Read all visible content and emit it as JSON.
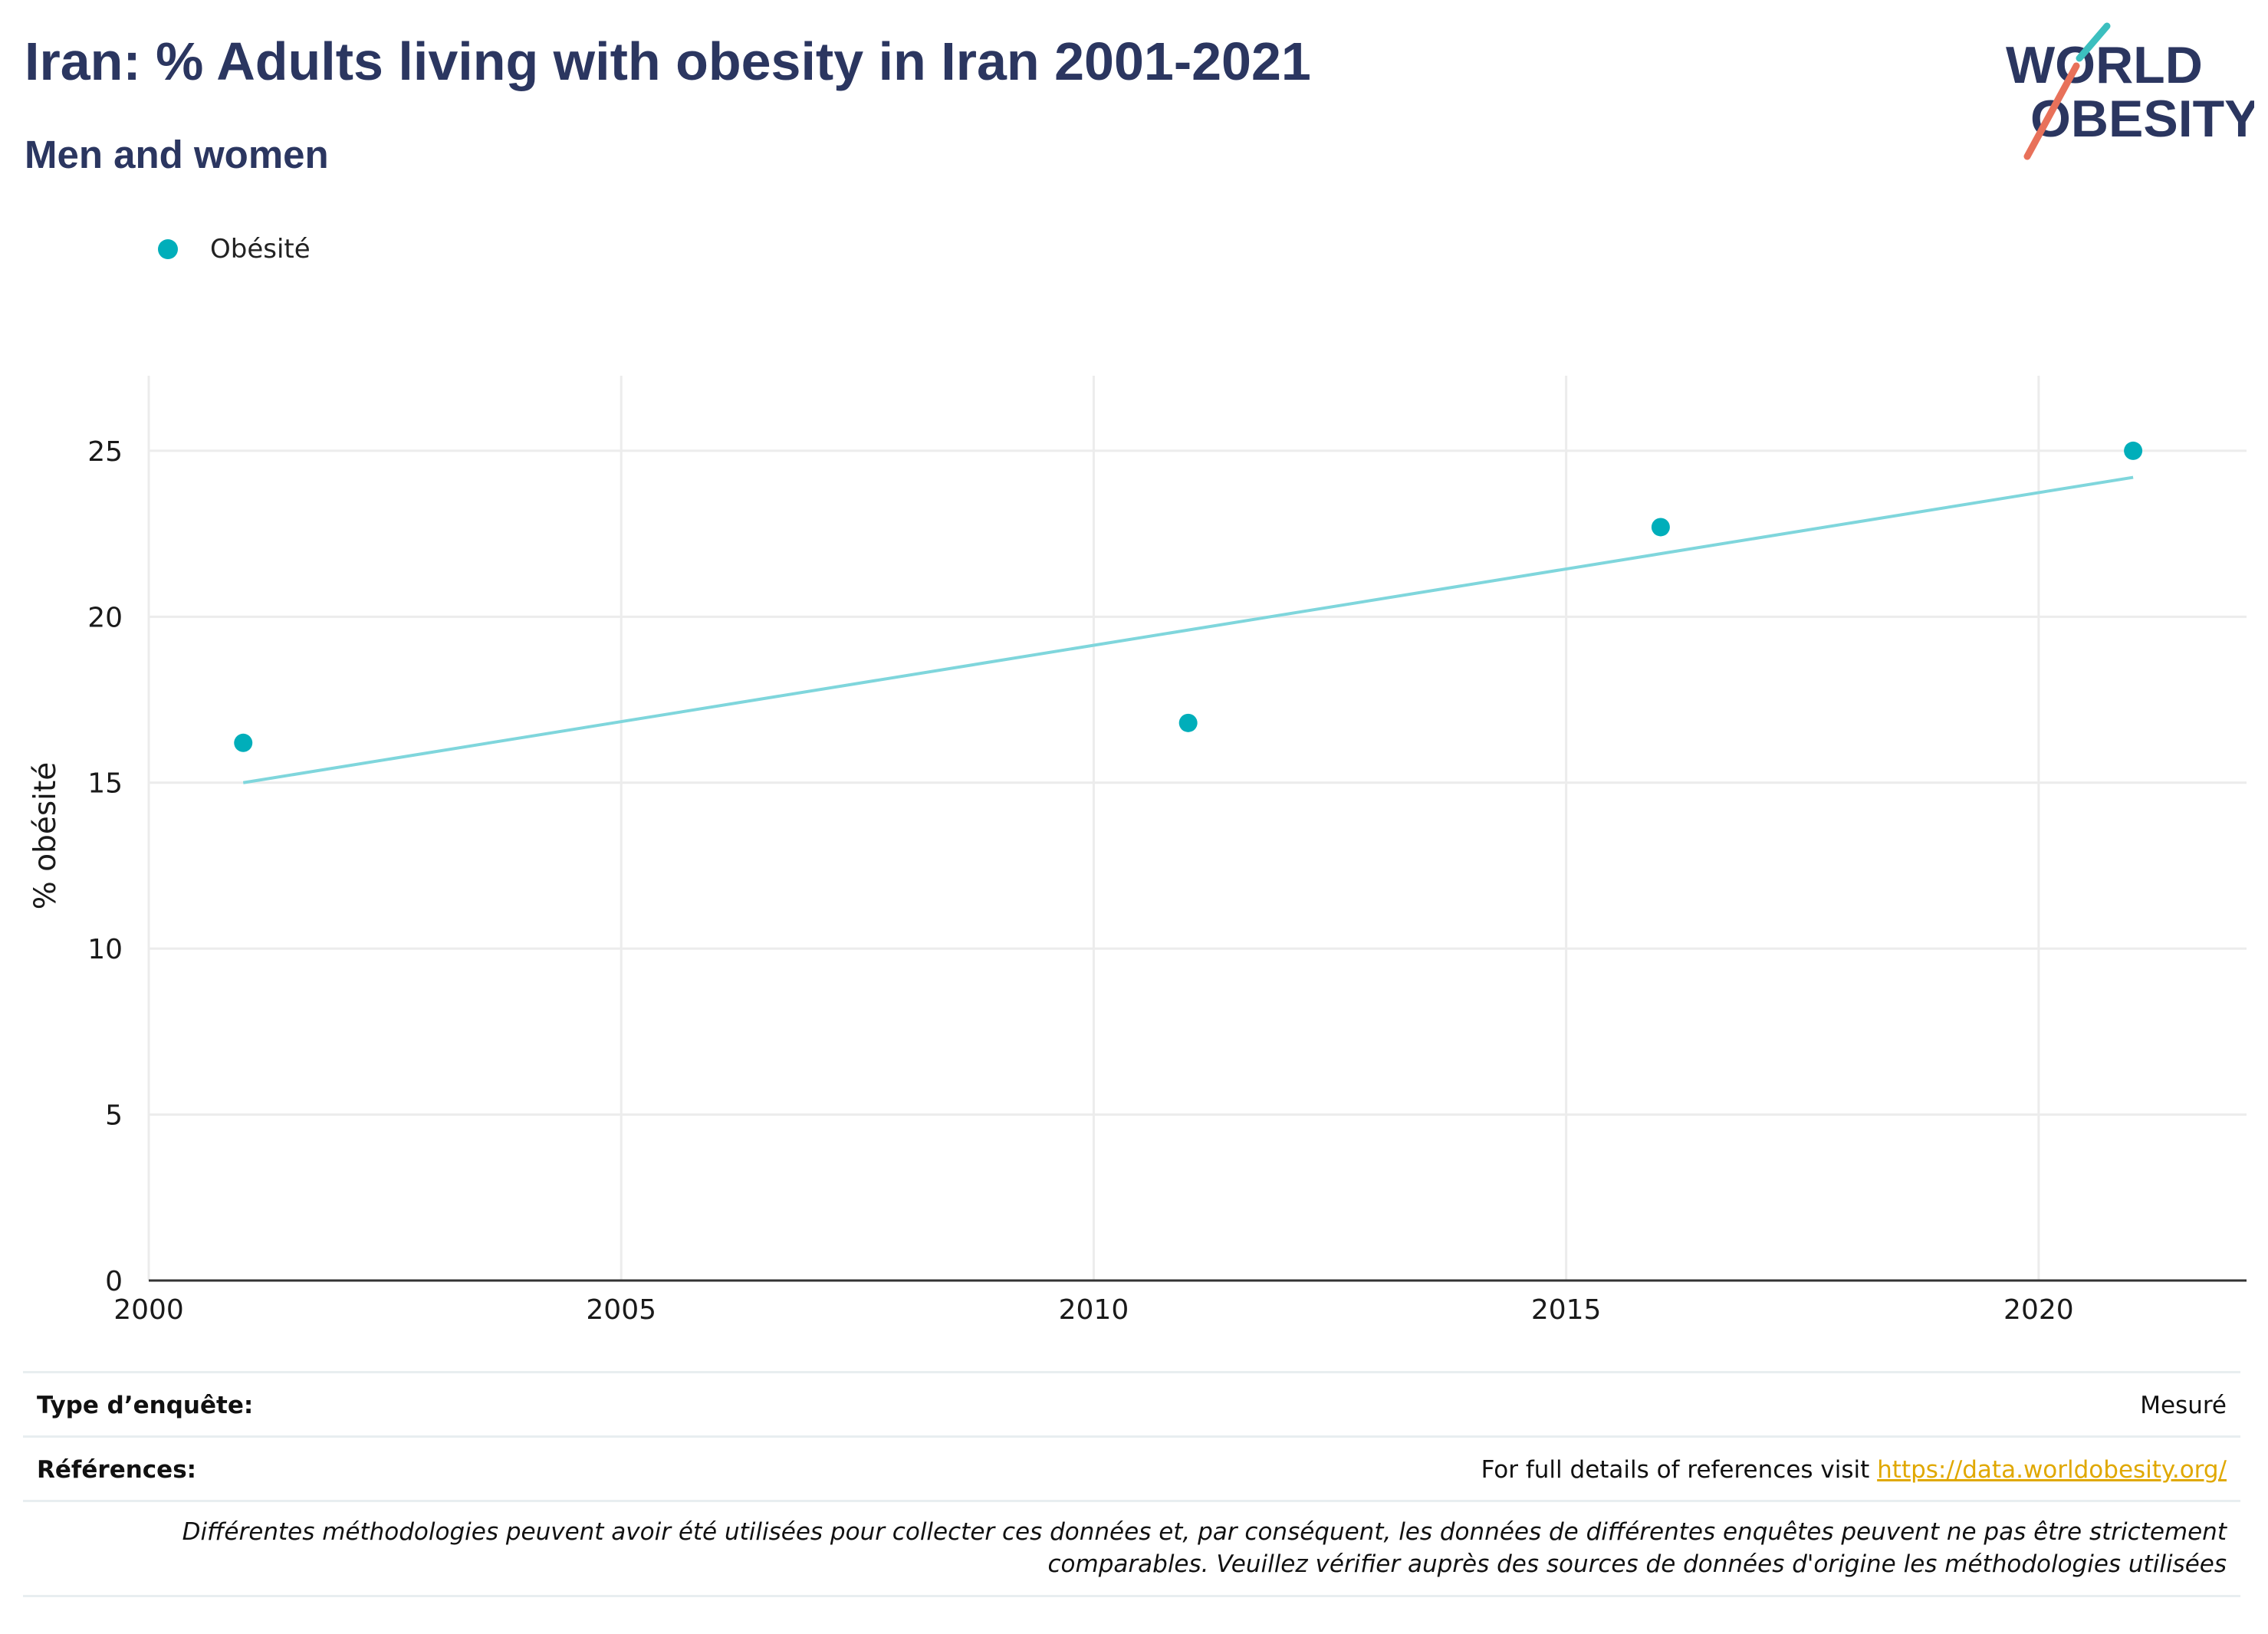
{
  "header": {
    "title": "Iran: % Adults living with obesity in Iran 2001-2021",
    "subtitle": "Men and women"
  },
  "logo": {
    "line1": "WORLD",
    "line2": "OBESITY"
  },
  "chart_data": {
    "type": "scatter",
    "ylabel": "% obésité",
    "xlim": [
      2000,
      2022.2
    ],
    "ylim": [
      0,
      26.8
    ],
    "x_ticks": [
      2000,
      2005,
      2010,
      2015,
      2020
    ],
    "y_ticks": [
      0,
      5,
      10,
      15,
      20,
      25
    ],
    "legend_position": "top-left",
    "grid": true,
    "series": [
      {
        "name": "Obésité",
        "color": "#00aeba",
        "points": [
          {
            "x": 2001,
            "y": 16.2
          },
          {
            "x": 2011,
            "y": 16.8
          },
          {
            "x": 2016,
            "y": 22.7
          },
          {
            "x": 2021,
            "y": 25.0
          }
        ]
      }
    ],
    "trendline": {
      "color": "#7fd6dc",
      "from": {
        "x": 2001,
        "y": 15.0
      },
      "to": {
        "x": 2021,
        "y": 24.2
      }
    }
  },
  "meta": {
    "survey_type_label": "Type d’enquête:",
    "survey_type_value": "Mesuré",
    "references_label": "Références:",
    "references_text": "For full details of references visit ",
    "references_link": "https://data.worldobesity.org/",
    "note_line1": "Différentes méthodologies peuvent avoir été utilisées pour collecter ces données et, par conséquent, les données de différentes enquêtes peuvent ne pas être strictement",
    "note_line2": "comparables. Veuillez vérifier auprès des sources de données d'origine les méthodologies utilisées"
  },
  "colors": {
    "title": "#2b3660",
    "series": "#00aeba",
    "trend": "#7fd6dc",
    "link": "#e0a800",
    "logo_teal": "#3cbfbf",
    "logo_coral": "#e8715a"
  }
}
